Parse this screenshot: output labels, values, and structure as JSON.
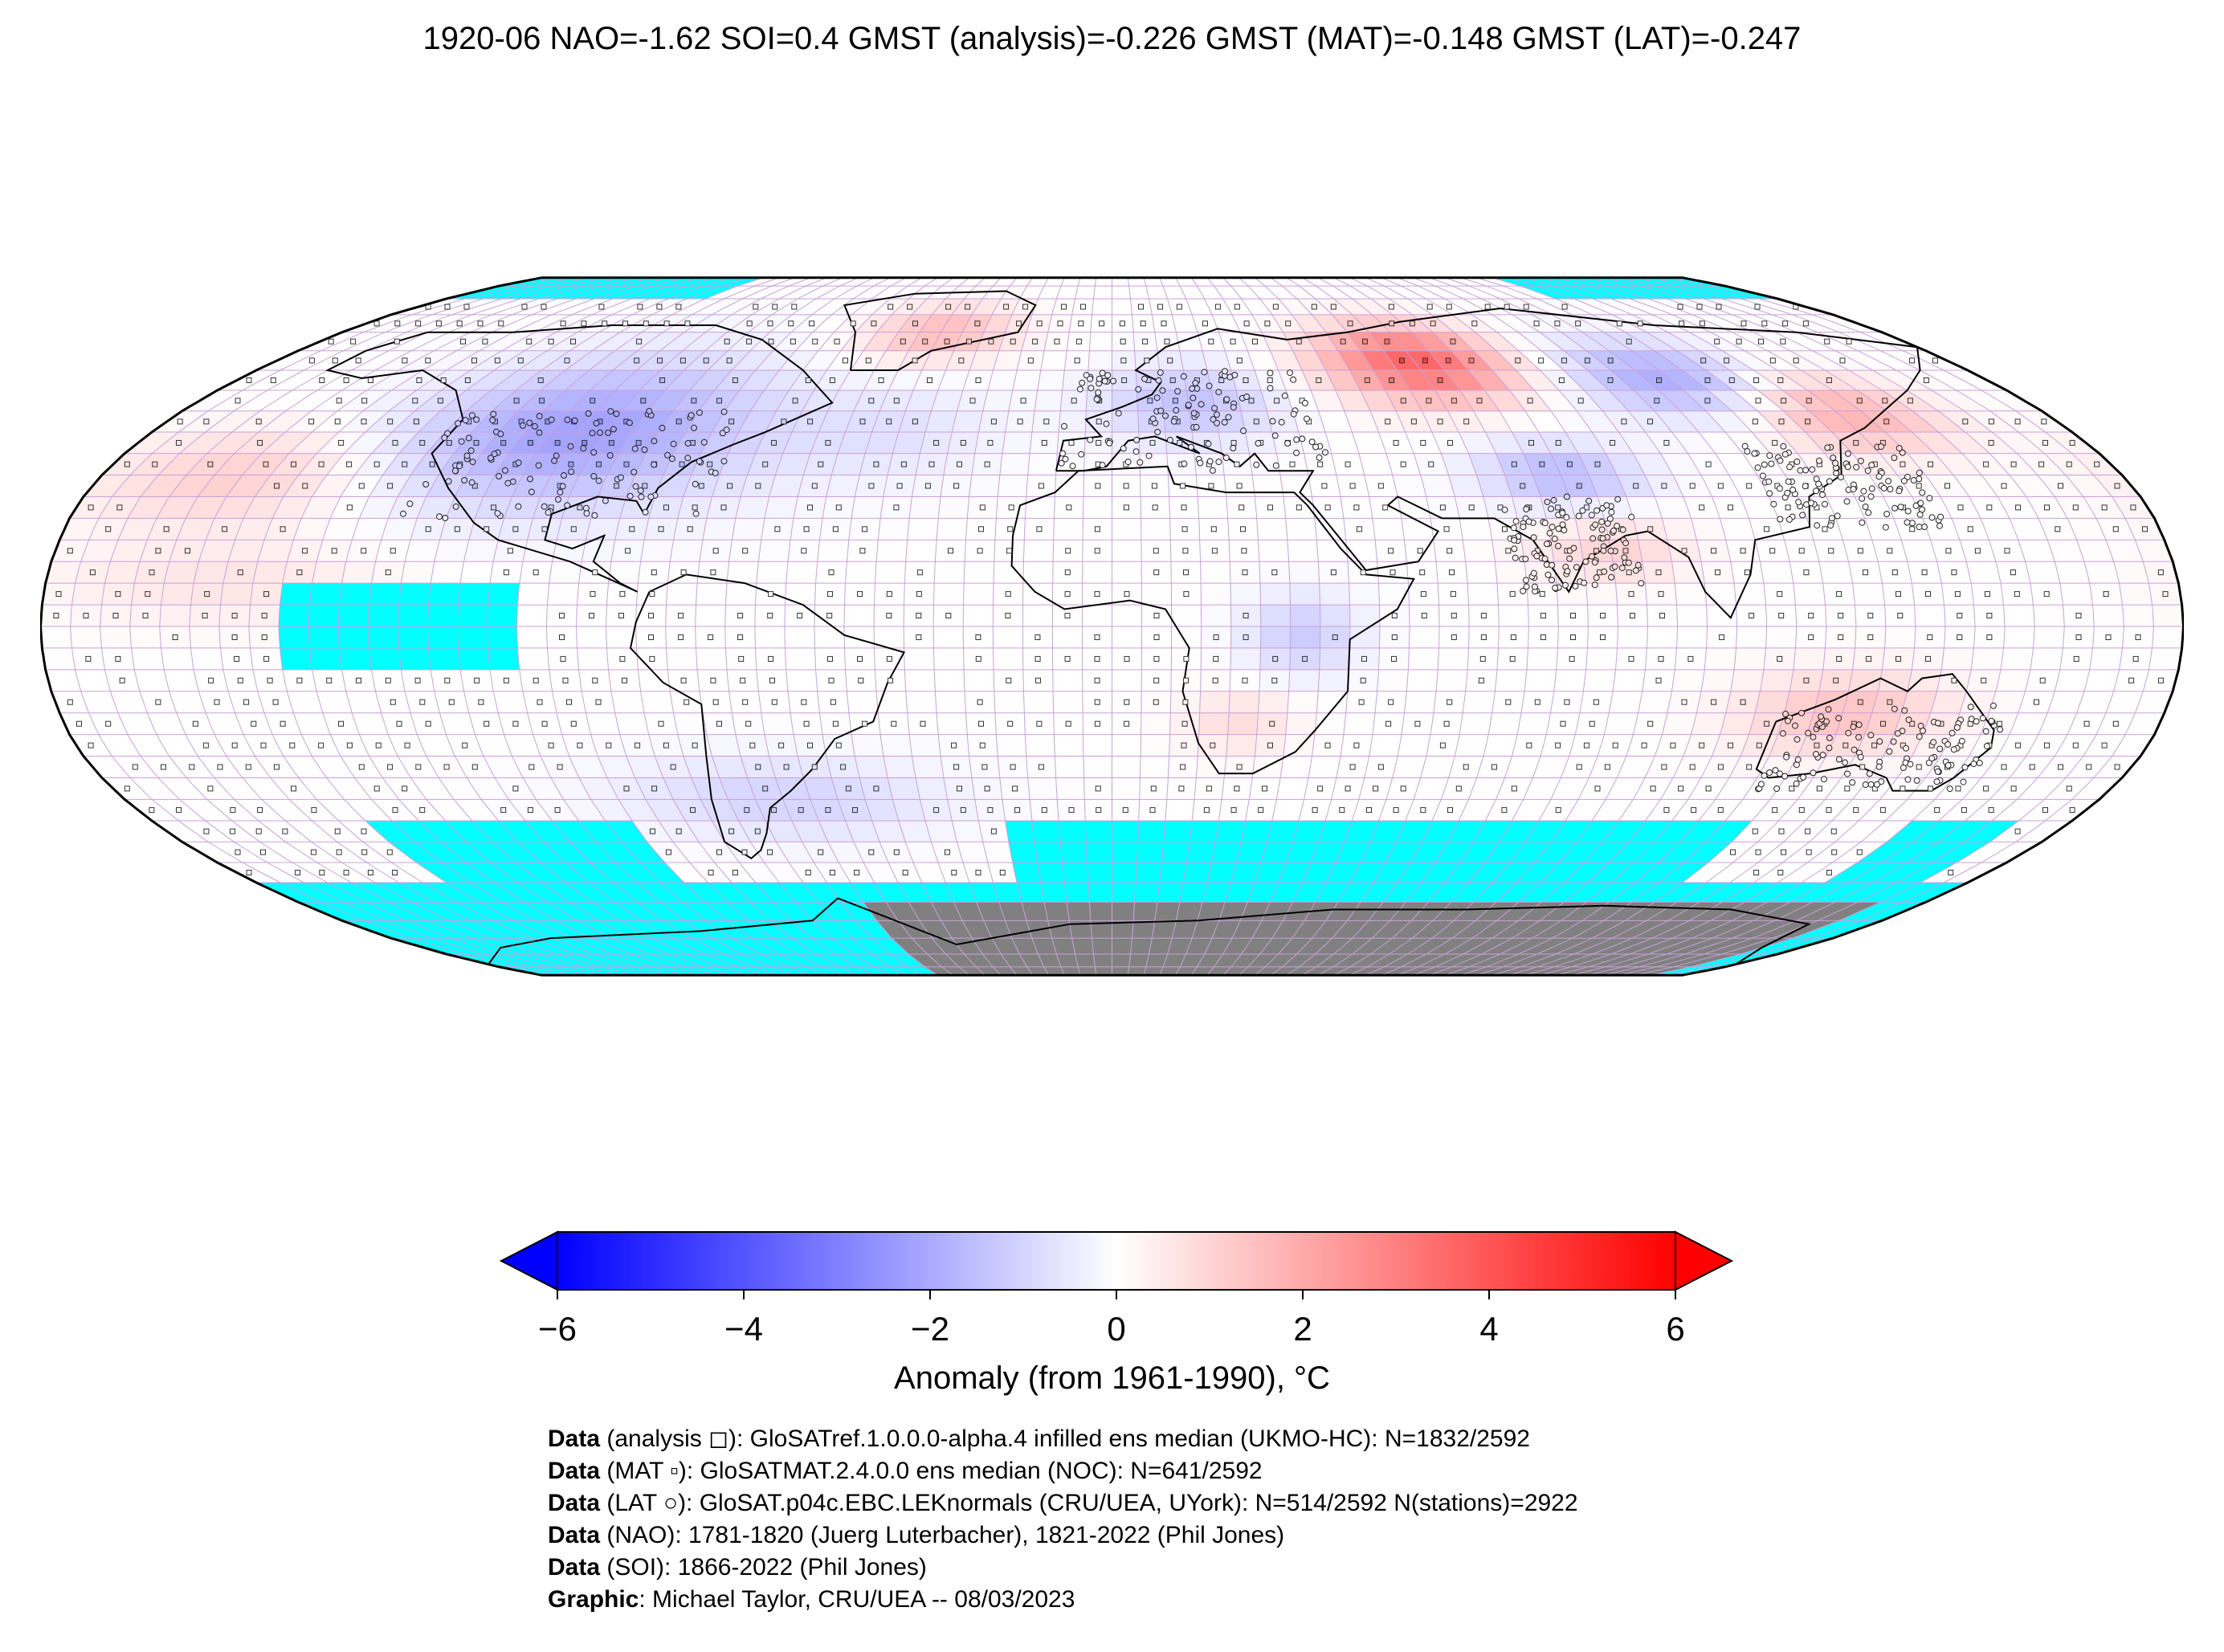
{
  "title": "1920-06 NAO=-1.62 SOI=0.4 GMST (analysis)=-0.226 GMST (MAT)=-0.148 GMST (LAT)=-0.247",
  "map": {
    "projection": "robinson",
    "grid": "5-degree",
    "colors": {
      "no_data": "#00ffff",
      "land_mask": "#808080",
      "coastline": "#000000",
      "grid": "#c9a0d8",
      "ocean_neutral": "#ffffff"
    },
    "anomaly_regions": [
      {
        "name": "north-america-cold",
        "value": -2.2
      },
      {
        "name": "greenland-warm",
        "value": 1.6
      },
      {
        "name": "north-atlantic-cold",
        "value": -0.6
      },
      {
        "name": "europe-cold",
        "value": -1.4
      },
      {
        "name": "west-siberia-warm",
        "value": 3.6
      },
      {
        "name": "east-siberia-cold",
        "value": -2.0
      },
      {
        "name": "east-asia-warm",
        "value": 2.0
      },
      {
        "name": "north-pacific-warm",
        "value": 1.2
      },
      {
        "name": "central-asia-cold",
        "value": -1.6
      },
      {
        "name": "india-warm",
        "value": 1.0
      },
      {
        "name": "equatorial-pacific-warm",
        "value": 0.6
      },
      {
        "name": "australia-warm",
        "value": 1.4
      },
      {
        "name": "southern-ocean-cold",
        "value": -1.0
      },
      {
        "name": "africa-east-cold",
        "value": -1.2
      },
      {
        "name": "africa-south-warm",
        "value": 0.8
      }
    ]
  },
  "colorbar": {
    "colors": {
      "min": "#0000ff",
      "mid": "#ffffff",
      "max": "#ff0000"
    },
    "range": [
      -6,
      6
    ],
    "extend": "both",
    "ticks": [
      "−6",
      "−4",
      "−2",
      "0",
      "2",
      "4",
      "6"
    ],
    "tick_values": [
      -6,
      -4,
      -2,
      0,
      2,
      4,
      6
    ],
    "label": "Anomaly (from 1961-1990), °C"
  },
  "credits": [
    {
      "head": "Data",
      "text": " (analysis ◻): GloSATref.1.0.0.0-alpha.4 infilled ens median (UKMO-HC): N=1832/2592"
    },
    {
      "head": "Data",
      "text": " (MAT ▫): GloSATMAT.2.4.0.0 ens median (NOC): N=641/2592"
    },
    {
      "head": "Data",
      "text": " (LAT ○): GloSAT.p04c.EBC.LEKnormals (CRU/UEA, UYork): N=514/2592 N(stations)=2922"
    },
    {
      "head": "Data",
      "text": " (NAO): 1781-1820 (Juerg Luterbacher), 1821-2022 (Phil Jones)"
    },
    {
      "head": "Data",
      "text": " (SOI): 1866-2022 (Phil Jones)"
    },
    {
      "head": "Graphic",
      "text": ": Michael Taylor, CRU/UEA -- 08/03/2023"
    }
  ]
}
